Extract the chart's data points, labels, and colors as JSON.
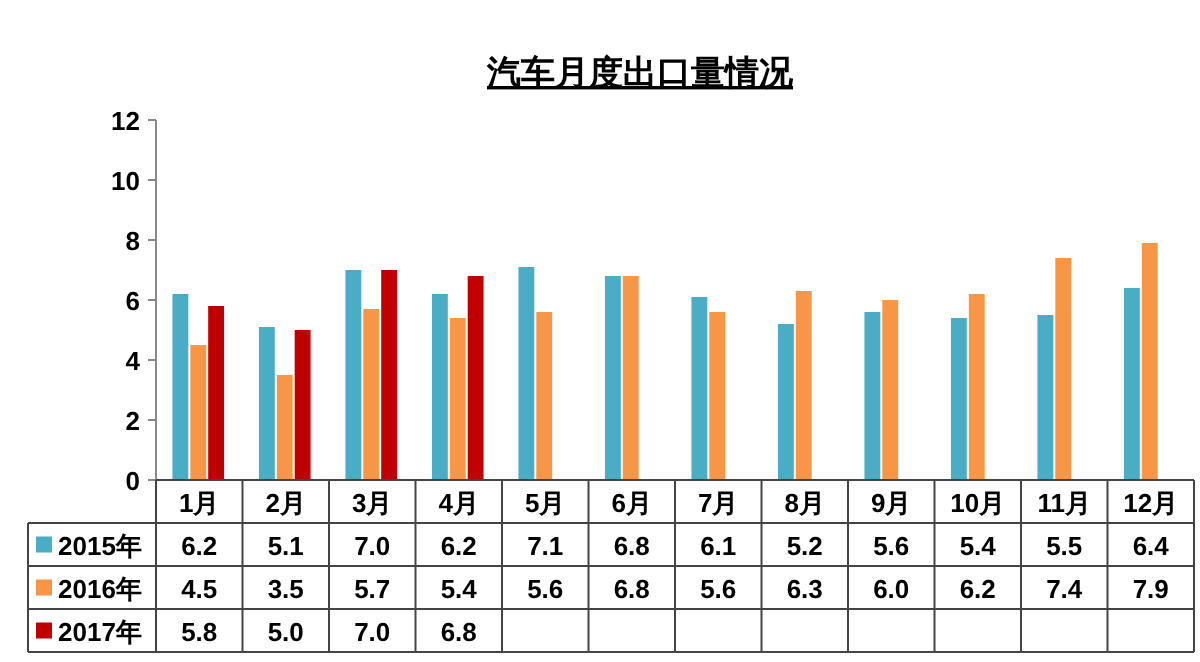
{
  "chart_data": {
    "type": "bar",
    "title": "汽车月度出口量情况",
    "categories": [
      "1月",
      "2月",
      "3月",
      "4月",
      "5月",
      "6月",
      "7月",
      "8月",
      "9月",
      "10月",
      "11月",
      "12月"
    ],
    "series": [
      {
        "name": "2015年",
        "color": "#4bacc6",
        "values": [
          6.2,
          5.1,
          7.0,
          6.2,
          7.1,
          6.8,
          6.1,
          5.2,
          5.6,
          5.4,
          5.5,
          6.4
        ],
        "value_labels": [
          "6.2",
          "5.1",
          "7.0",
          "6.2",
          "7.1",
          "6.8",
          "6.1",
          "5.2",
          "5.6",
          "5.4",
          "5.5",
          "6.4"
        ]
      },
      {
        "name": "2016年",
        "color": "#f79646",
        "values": [
          4.5,
          3.5,
          5.7,
          5.4,
          5.6,
          6.8,
          5.6,
          6.3,
          6.0,
          6.2,
          7.4,
          7.9
        ],
        "value_labels": [
          "4.5",
          "3.5",
          "5.7",
          "5.4",
          "5.6",
          "6.8",
          "5.6",
          "6.3",
          "6.0",
          "6.2",
          "7.4",
          "7.9"
        ]
      },
      {
        "name": "2017年",
        "color": "#c00000",
        "values": [
          5.8,
          5.0,
          7.0,
          6.8,
          null,
          null,
          null,
          null,
          null,
          null,
          null,
          null
        ],
        "value_labels": [
          "5.8",
          "5.0",
          "7.0",
          "6.8",
          null,
          null,
          null,
          null,
          null,
          null,
          null,
          null
        ]
      }
    ],
    "ylim": [
      0,
      12
    ],
    "yticks": [
      0,
      2,
      4,
      6,
      8,
      10,
      12
    ],
    "legend": "bottom"
  }
}
